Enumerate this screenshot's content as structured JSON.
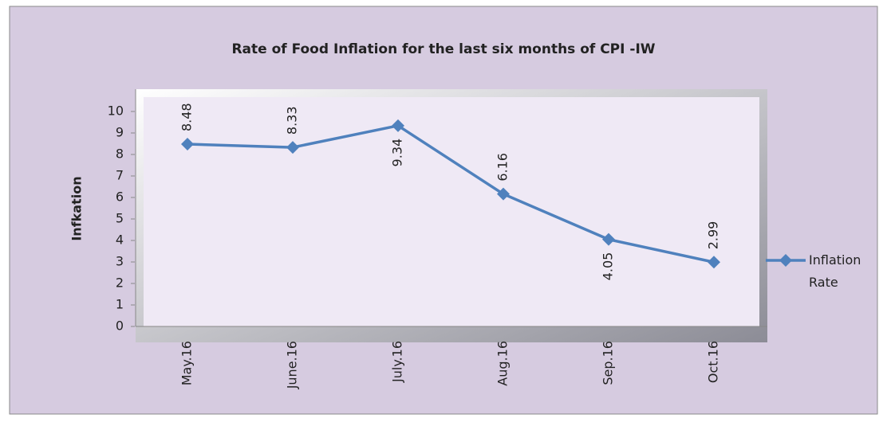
{
  "chart_data": {
    "type": "line",
    "title": "Rate of Food Inflation for the last six months of CPI -IW",
    "y_label": "Infkation",
    "categories": [
      "May.16",
      "June.16",
      "July.16",
      "Aug.16",
      "Sep.16",
      "Oct.16"
    ],
    "series": [
      {
        "name": "Inflation Rate",
        "color": "#4f81bd",
        "values": [
          8.48,
          8.33,
          9.34,
          6.16,
          4.05,
          2.99
        ]
      }
    ],
    "ylim": [
      0,
      10
    ],
    "yticks": [
      0,
      1,
      2,
      3,
      4,
      5,
      6,
      7,
      8,
      9,
      10
    ],
    "grid": false,
    "legend": "right"
  }
}
